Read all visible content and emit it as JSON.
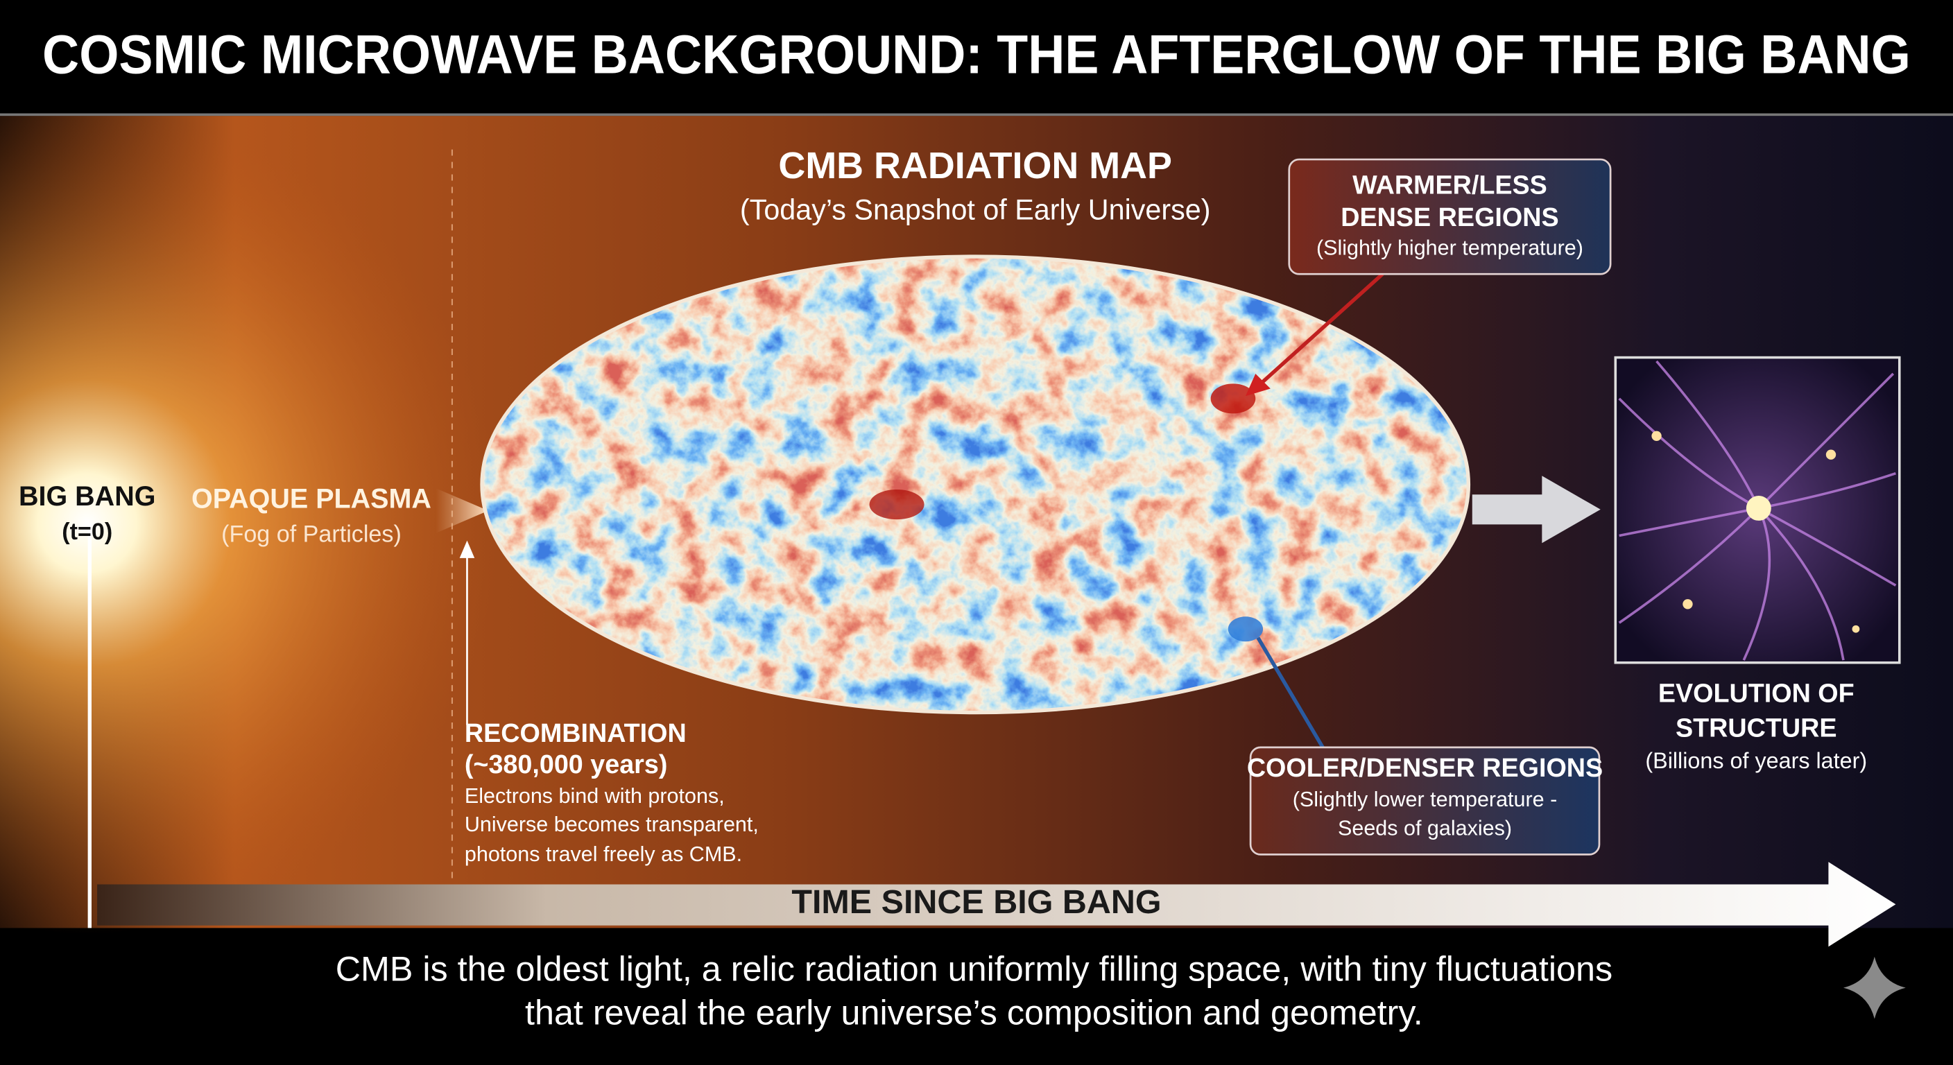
{
  "title": "COSMIC MICROWAVE BACKGROUND: THE AFTERGLOW OF THE BIG BANG",
  "big_bang": {
    "label": "BIG BANG",
    "note": "(t=0)"
  },
  "plasma": {
    "label": "OPAQUE PLASMA",
    "note": "(Fog of Particles)"
  },
  "recombination": {
    "label": "RECOMBINATION",
    "time": "(~380,000 years)",
    "lines": [
      "Electrons bind with protons,",
      "Universe becomes transparent,",
      "photons travel freely as CMB."
    ]
  },
  "map": {
    "title": "CMB RADIATION MAP",
    "subtitle": "(Today’s Snapshot of Early Universe)"
  },
  "warm_callout": {
    "title": [
      "WARMER/LESS",
      "DENSE REGIONS"
    ],
    "note": "(Slightly higher temperature)"
  },
  "cool_callout": {
    "title": "COOLER/DENSER REGIONS",
    "note": [
      "(Slightly lower temperature -",
      "Seeds of galaxies)"
    ]
  },
  "structure": {
    "title": [
      "EVOLUTION OF",
      "STRUCTURE"
    ],
    "note": "(Billions of years later)"
  },
  "timeline": {
    "label": "TIME SINCE BIG BANG"
  },
  "footer": [
    "CMB is the oldest light, a relic radiation uniformly filling space, with tiny fluctuations",
    "that reveal the early universe’s composition and geometry."
  ]
}
